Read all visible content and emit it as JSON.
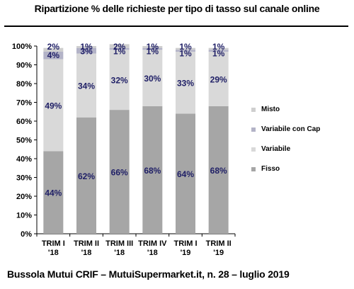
{
  "title": "Ripartizione % delle richieste per tipo di tasso sul canale online",
  "footer": "Bussola Mutui CRIF – MutuiSupermarket.it, n. 28 – luglio 2019",
  "chart_data": {
    "type": "bar",
    "stacked": true,
    "categories": [
      [
        "TRIM I",
        "'18"
      ],
      [
        "TRIM II",
        "'18"
      ],
      [
        "TRIM III",
        "'18"
      ],
      [
        "TRIM IV",
        "'18"
      ],
      [
        "TRIM I",
        "'19"
      ],
      [
        "TRIM II",
        "'19"
      ]
    ],
    "series": [
      {
        "name": "Fisso",
        "values": [
          44,
          62,
          66,
          68,
          64,
          68
        ],
        "color": "#a6a6a6",
        "labels": [
          "44%",
          "62%",
          "66%",
          "68%",
          "64%",
          "68%"
        ]
      },
      {
        "name": "Variabile",
        "values": [
          49,
          34,
          32,
          30,
          33,
          29
        ],
        "color": "#d9d9d9",
        "labels": [
          "49%",
          "34%",
          "32%",
          "30%",
          "33%",
          "29%"
        ]
      },
      {
        "name": "Variabile con Cap",
        "values": [
          4,
          3,
          1,
          1,
          1,
          1
        ],
        "color": "#b3b3c7",
        "labels": [
          "4%",
          "3%",
          "1%",
          "1%",
          "1%",
          "1%"
        ]
      },
      {
        "name": "Misto",
        "values": [
          2,
          1,
          2,
          1,
          1,
          1
        ],
        "color": "#cfcfcf",
        "labels": [
          "2%",
          "1%",
          "2%",
          "1%",
          "1%",
          "1%"
        ]
      }
    ],
    "legend_order": [
      "Misto",
      "Variabile con Cap",
      "Variabile",
      "Fisso"
    ],
    "legend_position": "right",
    "yticks": [
      "0%",
      "10%",
      "20%",
      "30%",
      "40%",
      "50%",
      "60%",
      "70%",
      "80%",
      "90%",
      "100%"
    ],
    "ylim": [
      0,
      100
    ],
    "label_color": "#1f1f66",
    "axis_color": "#000000"
  }
}
